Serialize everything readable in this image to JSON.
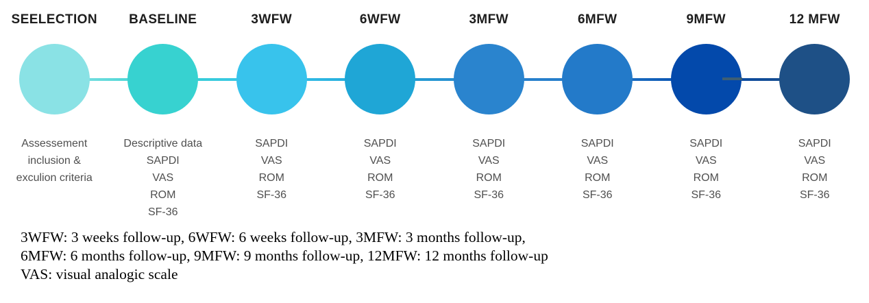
{
  "figure": {
    "background": "#ffffff",
    "title_color": "#1d1d1d",
    "notes_color": "#4f4f4f"
  },
  "stages": [
    {
      "title": "SEELECTION",
      "color": "#8ae2e5",
      "notes": [
        "Assessement",
        "inclusion &",
        "exculion criteria"
      ]
    },
    {
      "title": "BASELINE",
      "color": "#37d2d0",
      "notes": [
        "Descriptive data",
        "SAPDI",
        "VAS",
        "ROM",
        "SF-36"
      ]
    },
    {
      "title": "3WFW",
      "color": "#38c3ec",
      "notes": [
        "SAPDI",
        "VAS",
        "ROM",
        "SF-36"
      ]
    },
    {
      "title": "6WFW",
      "color": "#1fa6d6",
      "notes": [
        "SAPDI",
        "VAS",
        "ROM",
        "SF-36"
      ]
    },
    {
      "title": "3MFW",
      "color": "#2a84ce",
      "notes": [
        "SAPDI",
        "VAS",
        "ROM",
        "SF-36"
      ]
    },
    {
      "title": "6MFW",
      "color": "#237ac9",
      "notes": [
        "SAPDI",
        "VAS",
        "ROM",
        "SF-36"
      ]
    },
    {
      "title": "9MFW",
      "color": "#0349ab",
      "notes": [
        "SAPDI",
        "VAS",
        "ROM",
        "SF-36"
      ]
    },
    {
      "title": "12 MFW",
      "color": "#1e5086",
      "notes": [
        "SAPDI",
        "VAS",
        "ROM",
        "SF-36"
      ]
    }
  ],
  "decor": {
    "stub_color": "#44606e"
  },
  "footnote": {
    "lines": [
      "3WFW: 3 weeks follow-up, 6WFW: 6 weeks follow-up, 3MFW: 3 months follow-up,",
      "6MFW: 6 months follow-up, 9MFW: 9 months follow-up, 12MFW: 12 months follow-up",
      "VAS: visual analogic scale"
    ]
  }
}
